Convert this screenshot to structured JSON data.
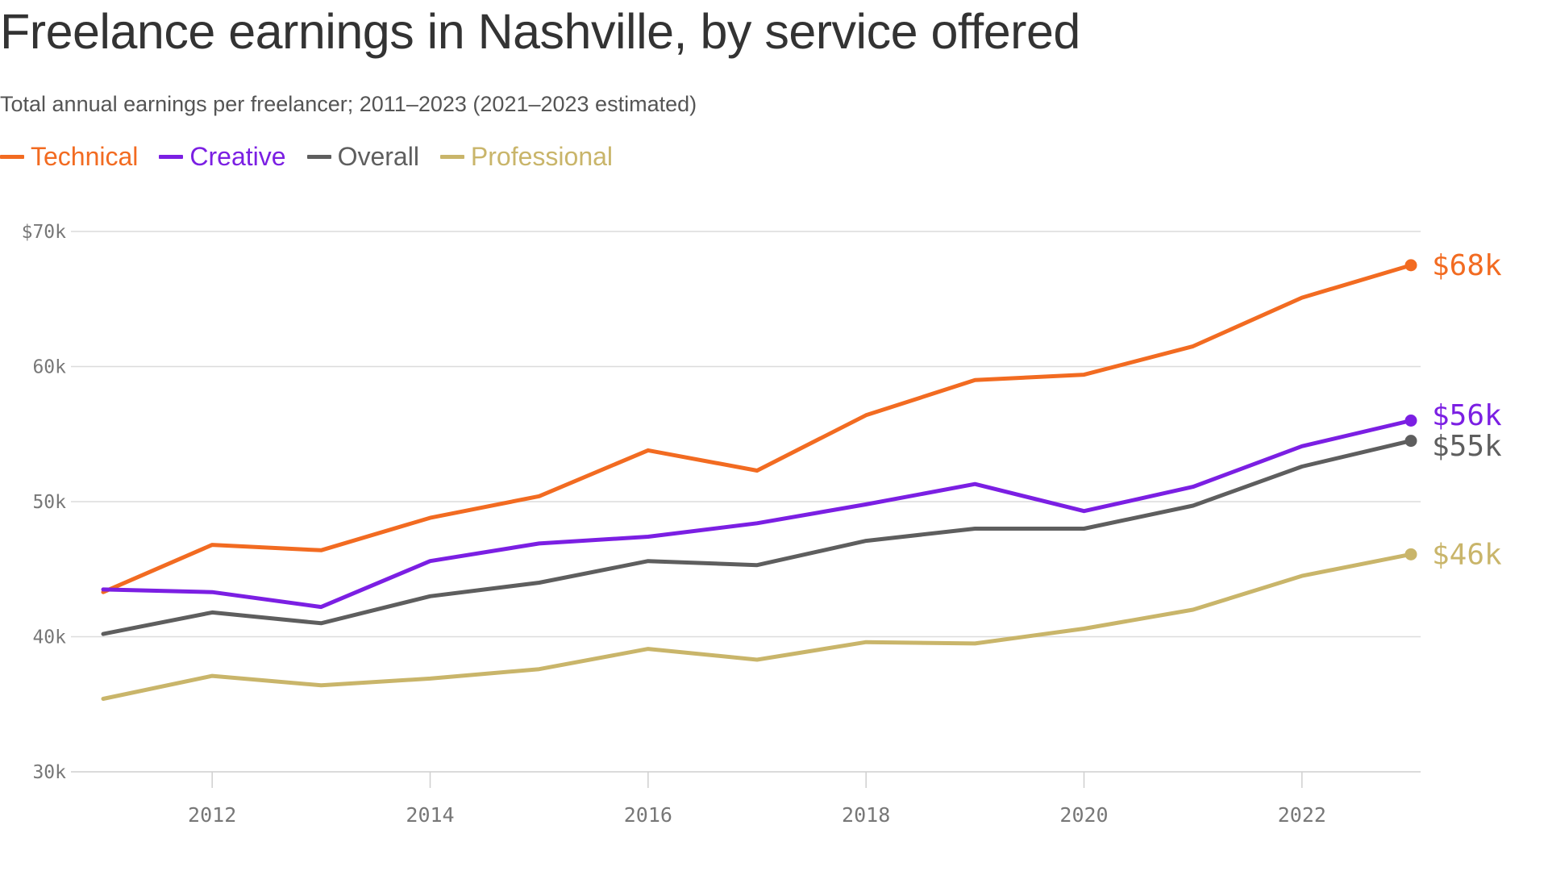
{
  "chart_data": {
    "type": "line",
    "title": "Freelance earnings in Nashville, by service offered",
    "subtitle": "Total annual earnings per freelancer; 2011–2023 (2021–2023 estimated)",
    "xlabel": "",
    "ylabel": "",
    "x": [
      2011,
      2012,
      2013,
      2014,
      2015,
      2016,
      2017,
      2018,
      2019,
      2020,
      2021,
      2022,
      2023
    ],
    "xlim": [
      2011,
      2023
    ],
    "ylim": [
      30000,
      70000
    ],
    "grid": true,
    "legend_position": "top-left",
    "y_ticks": [
      {
        "value": 70000,
        "label": "$70k"
      },
      {
        "value": 60000,
        "label": "60k"
      },
      {
        "value": 50000,
        "label": "50k"
      },
      {
        "value": 40000,
        "label": "40k"
      },
      {
        "value": 30000,
        "label": "30k"
      }
    ],
    "x_ticks": [
      {
        "value": 2012,
        "label": "2012"
      },
      {
        "value": 2014,
        "label": "2014"
      },
      {
        "value": 2016,
        "label": "2016"
      },
      {
        "value": 2018,
        "label": "2018"
      },
      {
        "value": 2020,
        "label": "2020"
      },
      {
        "value": 2022,
        "label": "2022"
      }
    ],
    "series": [
      {
        "name": "Technical",
        "color": "#f26b21",
        "values": [
          43300,
          46800,
          46400,
          48800,
          50400,
          53800,
          52300,
          56400,
          59000,
          59400,
          61500,
          65100,
          67500
        ],
        "end_label": "$68k"
      },
      {
        "name": "Creative",
        "color": "#7b1fe3",
        "values": [
          43500,
          43300,
          42200,
          45600,
          46900,
          47400,
          48400,
          49800,
          51300,
          49300,
          51100,
          54100,
          56000
        ],
        "end_label": "$56k"
      },
      {
        "name": "Overall",
        "color": "#5e5e5e",
        "values": [
          40200,
          41800,
          41000,
          43000,
          44000,
          45600,
          45300,
          47100,
          48000,
          48000,
          49700,
          52600,
          54500
        ],
        "end_label": "$55k"
      },
      {
        "name": "Professional",
        "color": "#c9b56a",
        "values": [
          35400,
          37100,
          36400,
          36900,
          37600,
          39100,
          38300,
          39600,
          39500,
          40600,
          42000,
          44500,
          46100
        ],
        "end_label": "$46k"
      }
    ]
  }
}
